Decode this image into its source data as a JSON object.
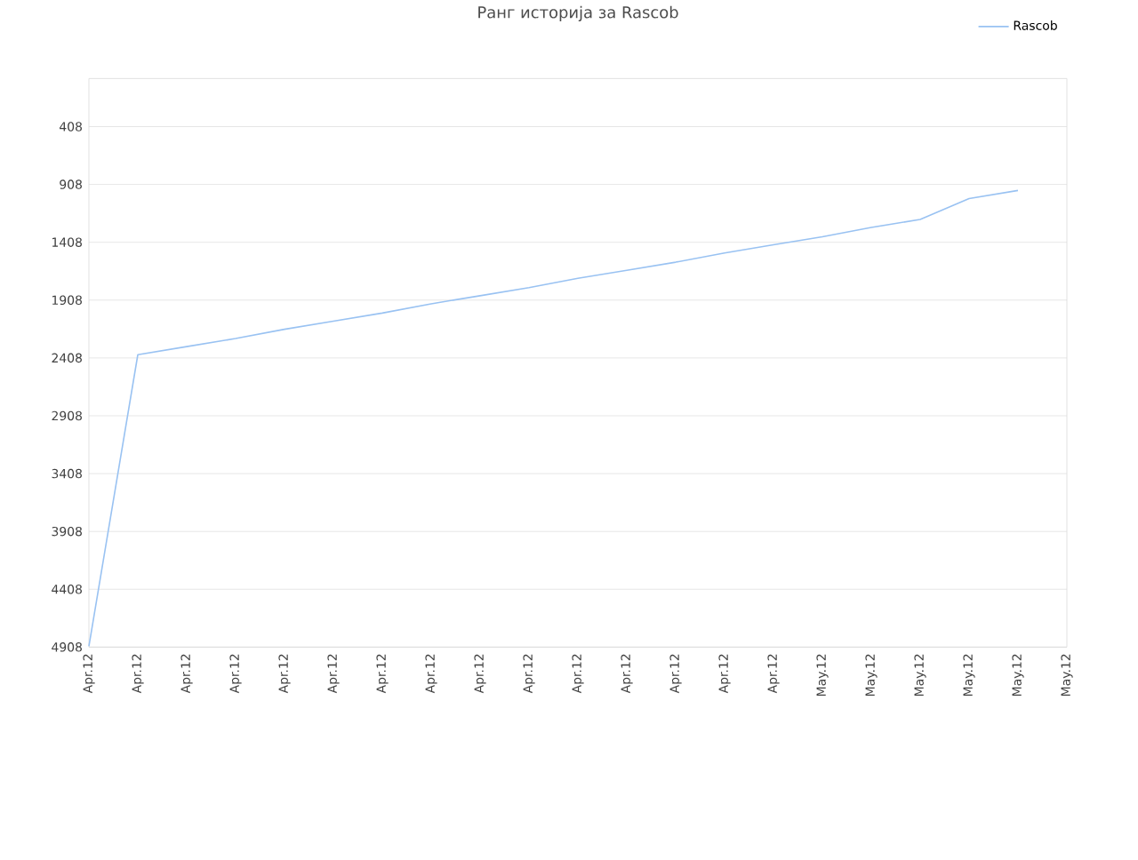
{
  "chart_data": {
    "type": "line",
    "title": "Ранг историја за Rascob",
    "categories": [
      "Apr.12",
      "Apr.12",
      "Apr.12",
      "Apr.12",
      "Apr.12",
      "Apr.12",
      "Apr.12",
      "Apr.12",
      "Apr.12",
      "Apr.12",
      "Apr.12",
      "Apr.12",
      "Apr.12",
      "Apr.12",
      "Apr.12",
      "May.12",
      "May.12",
      "May.12",
      "May.12",
      "May.12",
      "May.12"
    ],
    "series": [
      {
        "name": "Rascob",
        "color": "#99c2f2",
        "values": [
          4900,
          2380,
          2310,
          2240,
          2160,
          2090,
          2020,
          1940,
          1870,
          1800,
          1720,
          1650,
          1580,
          1500,
          1430,
          1360,
          1280,
          1210,
          1030,
          960,
          null
        ]
      }
    ],
    "ylim": [
      4908,
      -8
    ],
    "yticks": [
      408,
      908,
      1408,
      1908,
      2408,
      2908,
      3408,
      3908,
      4408,
      4908
    ],
    "grid": "y",
    "legend": "top right",
    "marker": "none",
    "line_style": "solid"
  }
}
